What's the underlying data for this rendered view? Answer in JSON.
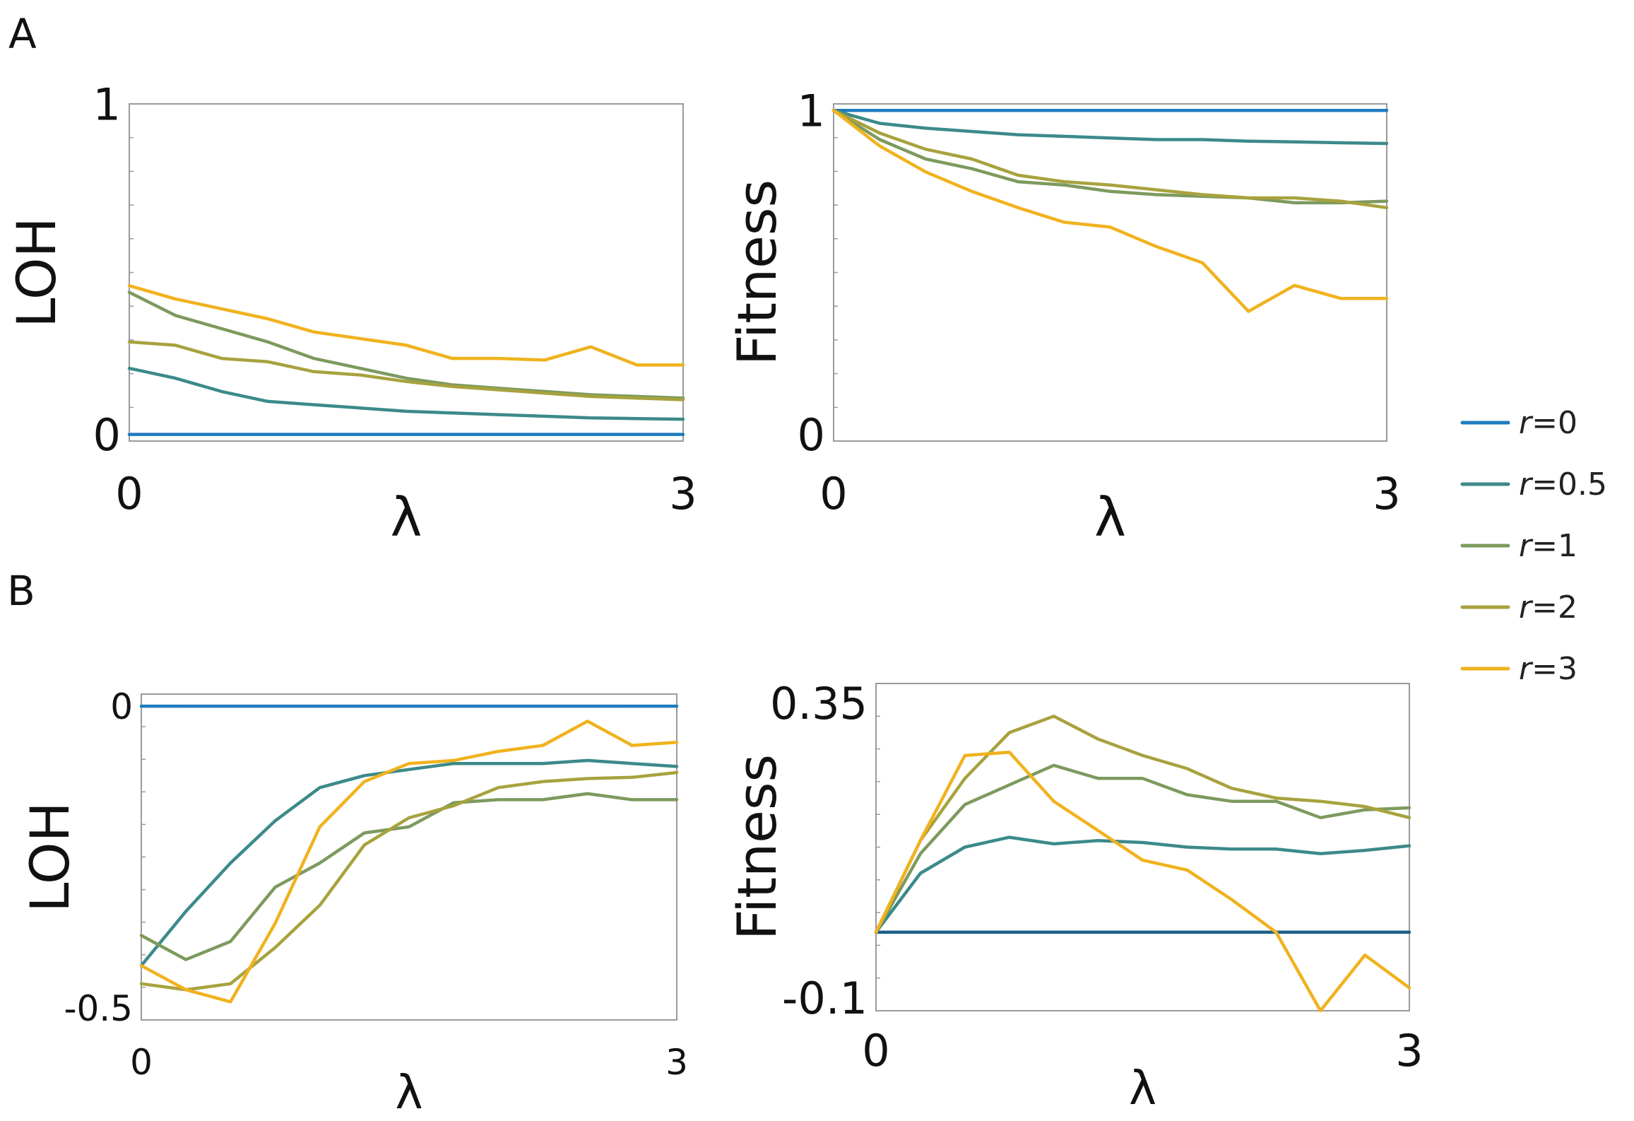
{
  "panel_labels": {
    "a": "A",
    "b": "B"
  },
  "colors": {
    "r=0": "#1f7bbf",
    "r=0.5": "#3c8a8a",
    "r=1": "#7d9a5e",
    "r=2": "#a8a23e",
    "r=3": "#f0b21e",
    "baseline_dark": "#1d5f86"
  },
  "legend": {
    "placement": "right",
    "entries": [
      {
        "key": "r=0",
        "italic": "r",
        "rest": "=0"
      },
      {
        "key": "r=0.5",
        "italic": "r",
        "rest": "=0.5"
      },
      {
        "key": "r=1",
        "italic": "r",
        "rest": "=1"
      },
      {
        "key": "r=2",
        "italic": "r",
        "rest": "=2"
      },
      {
        "key": "r=3",
        "italic": "r",
        "rest": "=3"
      }
    ]
  },
  "chart_data": [
    {
      "id": "A-left",
      "type": "line",
      "title": "",
      "xlabel": "λ",
      "ylabel": "LOH",
      "xlim": [
        0,
        3
      ],
      "ylim": [
        -0.02,
        1
      ],
      "xticks": [
        {
          "v": 0,
          "label": "0"
        },
        {
          "v": 3,
          "label": "3"
        }
      ],
      "yticks": [
        {
          "v": 0,
          "label": "0"
        },
        {
          "v": 1,
          "label": "1"
        }
      ],
      "x": [
        0,
        0.25,
        0.5,
        0.75,
        1,
        1.25,
        1.5,
        1.75,
        2,
        2.25,
        2.5,
        2.75,
        3
      ],
      "series": [
        {
          "name": "r=0",
          "values": [
            0,
            0,
            0,
            0,
            0,
            0,
            0,
            0,
            0,
            0,
            0,
            0,
            0
          ]
        },
        {
          "name": "r=0.5",
          "values": [
            0.2,
            0.17,
            0.13,
            0.1,
            0.09,
            0.08,
            0.07,
            0.065,
            0.06,
            0.055,
            0.05,
            0.048,
            0.046
          ]
        },
        {
          "name": "r=1",
          "values": [
            0.43,
            0.36,
            0.32,
            0.28,
            0.23,
            0.2,
            0.17,
            0.15,
            0.14,
            0.13,
            0.12,
            0.115,
            0.11
          ]
        },
        {
          "name": "r=2",
          "values": [
            0.28,
            0.27,
            0.23,
            0.22,
            0.19,
            0.18,
            0.16,
            0.145,
            0.135,
            0.125,
            0.115,
            0.11,
            0.105
          ]
        },
        {
          "name": "r=3",
          "values": [
            0.45,
            0.41,
            0.38,
            0.35,
            0.31,
            0.29,
            0.27,
            0.23,
            0.23,
            0.225,
            0.265,
            0.21,
            0.21
          ]
        }
      ]
    },
    {
      "id": "A-right",
      "type": "line",
      "title": "",
      "xlabel": "λ",
      "ylabel": "Fitness",
      "xlim": [
        0,
        3
      ],
      "ylim": [
        -0.02,
        1.02
      ],
      "xticks": [
        {
          "v": 0,
          "label": "0"
        },
        {
          "v": 3,
          "label": "3"
        }
      ],
      "yticks": [
        {
          "v": 0,
          "label": "0"
        },
        {
          "v": 1,
          "label": "1"
        }
      ],
      "x": [
        0,
        0.25,
        0.5,
        0.75,
        1,
        1.25,
        1.5,
        1.75,
        2,
        2.25,
        2.5,
        2.75,
        3
      ],
      "series": [
        {
          "name": "r=0",
          "values": [
            1,
            1,
            1,
            1,
            1,
            1,
            1,
            1,
            1,
            1,
            1,
            1,
            1
          ]
        },
        {
          "name": "r=0.5",
          "values": [
            1,
            0.96,
            0.945,
            0.935,
            0.925,
            0.92,
            0.915,
            0.91,
            0.91,
            0.905,
            0.903,
            0.9,
            0.898
          ]
        },
        {
          "name": "r=1",
          "values": [
            1,
            0.91,
            0.85,
            0.82,
            0.78,
            0.77,
            0.75,
            0.74,
            0.735,
            0.73,
            0.715,
            0.715,
            0.72
          ]
        },
        {
          "name": "r=2",
          "values": [
            1,
            0.93,
            0.88,
            0.85,
            0.8,
            0.78,
            0.77,
            0.755,
            0.74,
            0.73,
            0.73,
            0.72,
            0.7
          ]
        },
        {
          "name": "r=3",
          "values": [
            1,
            0.89,
            0.81,
            0.75,
            0.7,
            0.655,
            0.64,
            0.58,
            0.53,
            0.38,
            0.46,
            0.42,
            0.42
          ]
        }
      ]
    },
    {
      "id": "B-left",
      "type": "line",
      "title": "",
      "xlabel": "λ",
      "ylabel": "LOH",
      "xlim": [
        0,
        3
      ],
      "ylim": [
        -0.52,
        0.02
      ],
      "xticks": [
        {
          "v": 0,
          "label": "0"
        },
        {
          "v": 3,
          "label": "3"
        }
      ],
      "yticks": [
        {
          "v": 0,
          "label": "0"
        },
        {
          "v": -0.5,
          "label": "-0.5"
        }
      ],
      "x": [
        0,
        0.25,
        0.5,
        0.75,
        1,
        1.25,
        1.5,
        1.75,
        2,
        2.25,
        2.5,
        2.75,
        3
      ],
      "series": [
        {
          "name": "r=0",
          "values": [
            0,
            0,
            0,
            0,
            0,
            0,
            0,
            0,
            0,
            0,
            0,
            0,
            0
          ]
        },
        {
          "name": "r=0.5",
          "values": [
            -0.43,
            -0.34,
            -0.26,
            -0.19,
            -0.135,
            -0.115,
            -0.105,
            -0.095,
            -0.095,
            -0.095,
            -0.09,
            -0.095,
            -0.1
          ]
        },
        {
          "name": "r=1",
          "values": [
            -0.38,
            -0.42,
            -0.39,
            -0.3,
            -0.26,
            -0.21,
            -0.2,
            -0.16,
            -0.155,
            -0.155,
            -0.145,
            -0.155,
            -0.155
          ]
        },
        {
          "name": "r=2",
          "values": [
            -0.46,
            -0.47,
            -0.46,
            -0.4,
            -0.33,
            -0.23,
            -0.185,
            -0.165,
            -0.135,
            -0.125,
            -0.12,
            -0.118,
            -0.11
          ]
        },
        {
          "name": "r=3",
          "values": [
            -0.43,
            -0.47,
            -0.49,
            -0.36,
            -0.2,
            -0.125,
            -0.095,
            -0.09,
            -0.075,
            -0.065,
            -0.025,
            -0.065,
            -0.06
          ]
        }
      ]
    },
    {
      "id": "B-right",
      "type": "line",
      "title": "",
      "xlabel": "λ",
      "ylabel": "Fitness",
      "xlim": [
        0,
        3
      ],
      "ylim": [
        -0.12,
        0.38
      ],
      "xticks": [
        {
          "v": 0,
          "label": "0"
        },
        {
          "v": 3,
          "label": "3"
        }
      ],
      "yticks": [
        {
          "v": 0.35,
          "label": "0.35"
        },
        {
          "v": -0.1,
          "label": "-0.1"
        }
      ],
      "x": [
        0,
        0.25,
        0.5,
        0.75,
        1,
        1.25,
        1.5,
        1.75,
        2,
        2.25,
        2.5,
        2.75,
        3
      ],
      "series": [
        {
          "name": "r=0",
          "values": [
            0,
            0,
            0,
            0,
            0,
            0,
            0,
            0,
            0,
            0,
            0,
            0,
            0
          ]
        },
        {
          "name": "r=0.5",
          "values": [
            0,
            0.09,
            0.13,
            0.145,
            0.135,
            0.14,
            0.137,
            0.13,
            0.127,
            0.127,
            0.12,
            0.125,
            0.132
          ]
        },
        {
          "name": "r=1",
          "values": [
            0,
            0.12,
            0.195,
            0.225,
            0.255,
            0.235,
            0.235,
            0.21,
            0.2,
            0.2,
            0.175,
            0.187,
            0.19
          ]
        },
        {
          "name": "r=2",
          "values": [
            0,
            0.14,
            0.235,
            0.305,
            0.33,
            0.295,
            0.27,
            0.25,
            0.22,
            0.205,
            0.2,
            0.192,
            0.175
          ]
        },
        {
          "name": "r=3",
          "values": [
            0,
            0.14,
            0.27,
            0.275,
            0.2,
            0.155,
            0.11,
            0.095,
            0.05,
            0.0,
            -0.12,
            -0.035,
            -0.085
          ]
        }
      ]
    }
  ]
}
